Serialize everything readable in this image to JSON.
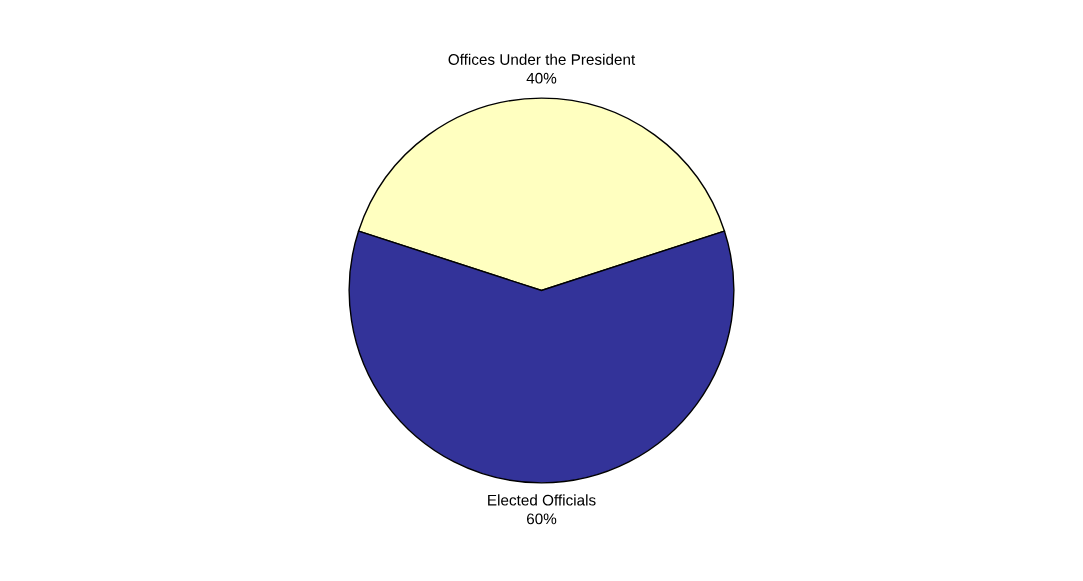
{
  "chart_data": {
    "type": "pie",
    "categories": [
      "Offices Under the President",
      "Elected Officials"
    ],
    "values": [
      40,
      60
    ],
    "value_labels": [
      "40%",
      "60%"
    ],
    "colors": [
      "#ffffc0",
      "#333399"
    ]
  }
}
